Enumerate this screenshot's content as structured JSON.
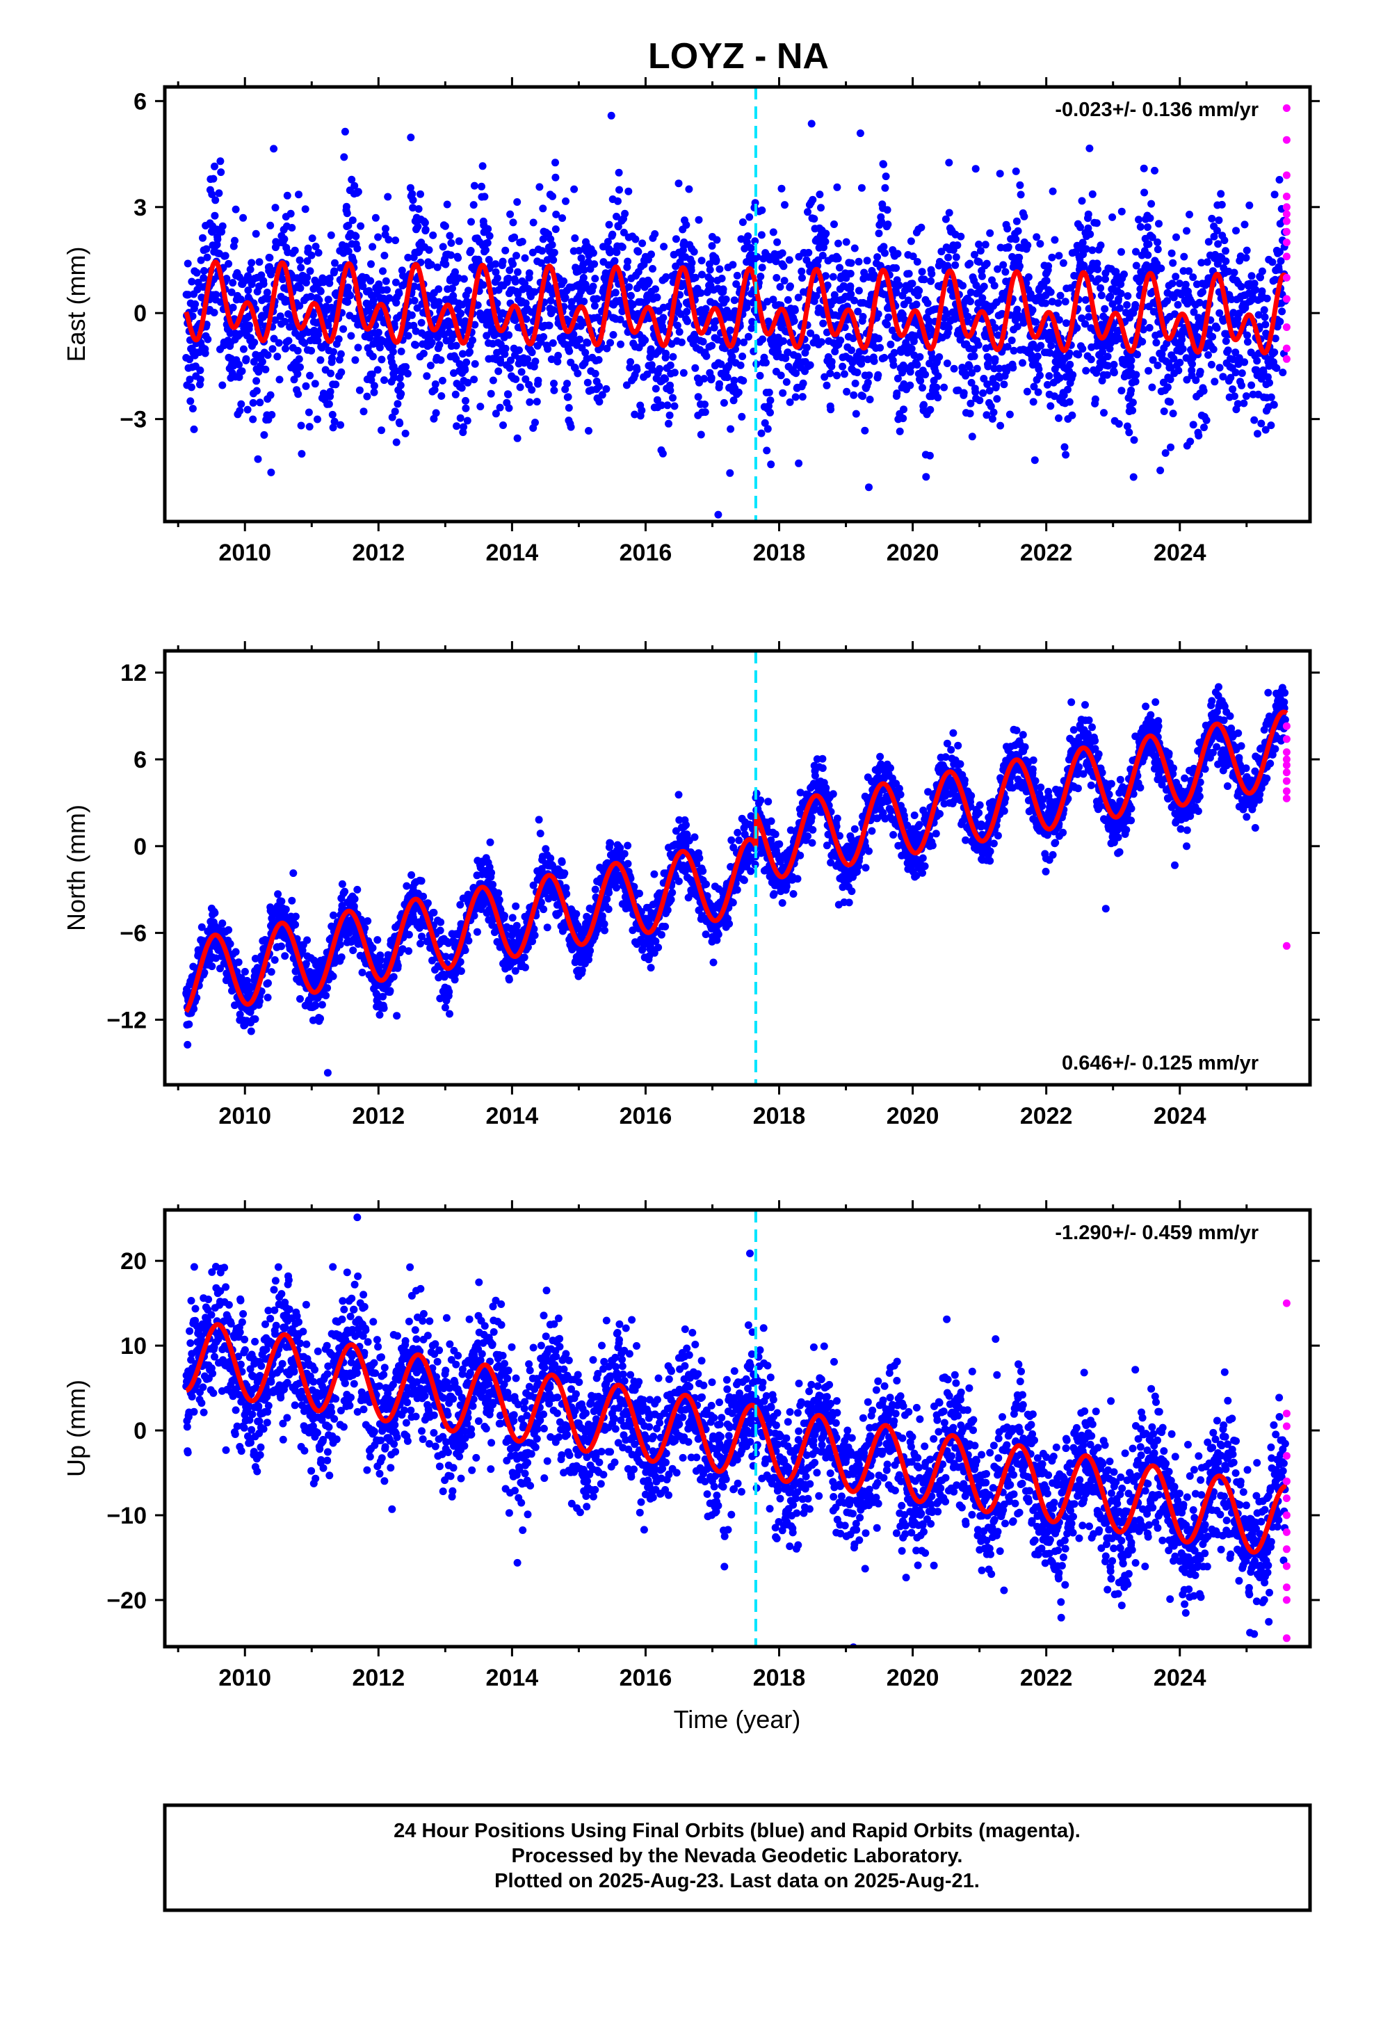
{
  "title": "LOYZ - NA",
  "xlabel": "Time (year)",
  "colors": {
    "final": "#0000ff",
    "rapid": "#ff00ff",
    "model": "#ff0000",
    "event": "#00e5ff"
  },
  "caption": [
    "24 Hour Positions Using Final Orbits (blue) and Rapid Orbits (magenta).",
    "Processed by the Nevada Geodetic Laboratory.",
    "Plotted on 2025-Aug-23. Last data on 2025-Aug-21."
  ],
  "chart_data": [
    {
      "type": "scatter",
      "component": "east",
      "ylabel": "East (mm)",
      "rate": "-0.023+/- 0.136 mm/yr",
      "xlim": [
        2008.8,
        2025.95
      ],
      "ylim": [
        -5.9,
        6.4
      ],
      "xticks": [
        2010,
        2012,
        2014,
        2016,
        2018,
        2020,
        2022,
        2024
      ],
      "yticks": [
        6,
        3,
        0,
        -3
      ],
      "event_line_x": 2017.65,
      "series": [
        {
          "name": "Final Orbits",
          "color": "#0000ff",
          "points_description": "dense daily scatter 2009.1-2025.6, mostly between -3 and 3 mm with outliers to -5.8 and 6.3"
        },
        {
          "name": "Rapid Orbits",
          "color": "#ff00ff",
          "x": 2025.6,
          "y": [
            5.8,
            4.9,
            3.9,
            3.3,
            3.0,
            2.8,
            2.6,
            2.3,
            2.0,
            1.6,
            1.0,
            0.4,
            -0.4,
            -1.0,
            -1.3
          ]
        },
        {
          "name": "Model",
          "color": "#ff0000",
          "trend": -0.023,
          "annual_amp": 1.0,
          "semiannual_amp": 0.6
        }
      ]
    },
    {
      "type": "scatter",
      "component": "north",
      "ylabel": "North (mm)",
      "rate": "0.646+/- 0.125 mm/yr",
      "xlim": [
        2008.8,
        2025.95
      ],
      "ylim": [
        -16.5,
        13.5
      ],
      "xticks": [
        2010,
        2012,
        2014,
        2016,
        2018,
        2020,
        2022,
        2024
      ],
      "yticks": [
        12,
        6,
        0,
        -6,
        -12
      ],
      "event_line_x": 2017.65,
      "series": [
        {
          "name": "Final Orbits",
          "color": "#0000ff",
          "points_description": "daily scatter rising from about -10 mm (2009) to about 7 mm (2025), step of ~2.5 mm at 2017.65, annual cycle ~5 mm"
        },
        {
          "name": "Rapid Orbits",
          "color": "#ff00ff",
          "x": 2025.6,
          "y": [
            8.3,
            7.4,
            6.5,
            6.0,
            5.6,
            5.1,
            4.5,
            3.8,
            3.3,
            -6.9
          ]
        },
        {
          "name": "Model",
          "color": "#ff0000",
          "start": -9.5,
          "end": 7.0,
          "annual_amp": 2.5
        }
      ]
    },
    {
      "type": "scatter",
      "component": "up",
      "ylabel": "Up (mm)",
      "rate": "-1.290+/- 0.459 mm/yr",
      "xlim": [
        2008.8,
        2025.95
      ],
      "ylim": [
        -25.5,
        26
      ],
      "xticks": [
        2010,
        2012,
        2014,
        2016,
        2018,
        2020,
        2022,
        2024
      ],
      "yticks": [
        20,
        10,
        0,
        -10,
        -20
      ],
      "event_line_x": 2017.65,
      "series": [
        {
          "name": "Final Orbits",
          "color": "#0000ff",
          "points_description": "daily scatter declining from about 8 mm (2009) to about -10 mm (2025), spread roughly +/-7 mm, outliers to 24 and -24"
        },
        {
          "name": "Rapid Orbits",
          "color": "#ff00ff",
          "x": 2025.6,
          "y": [
            15.0,
            2.0,
            0.5,
            -3.0,
            -6.0,
            -8.0,
            -10.0,
            -12.0,
            -14.0,
            -16.0,
            -18.5,
            -20.0,
            -24.5
          ]
        },
        {
          "name": "Model",
          "color": "#ff0000",
          "start": 8.5,
          "end": -11.0,
          "annual_amp": 4.0
        }
      ]
    }
  ]
}
